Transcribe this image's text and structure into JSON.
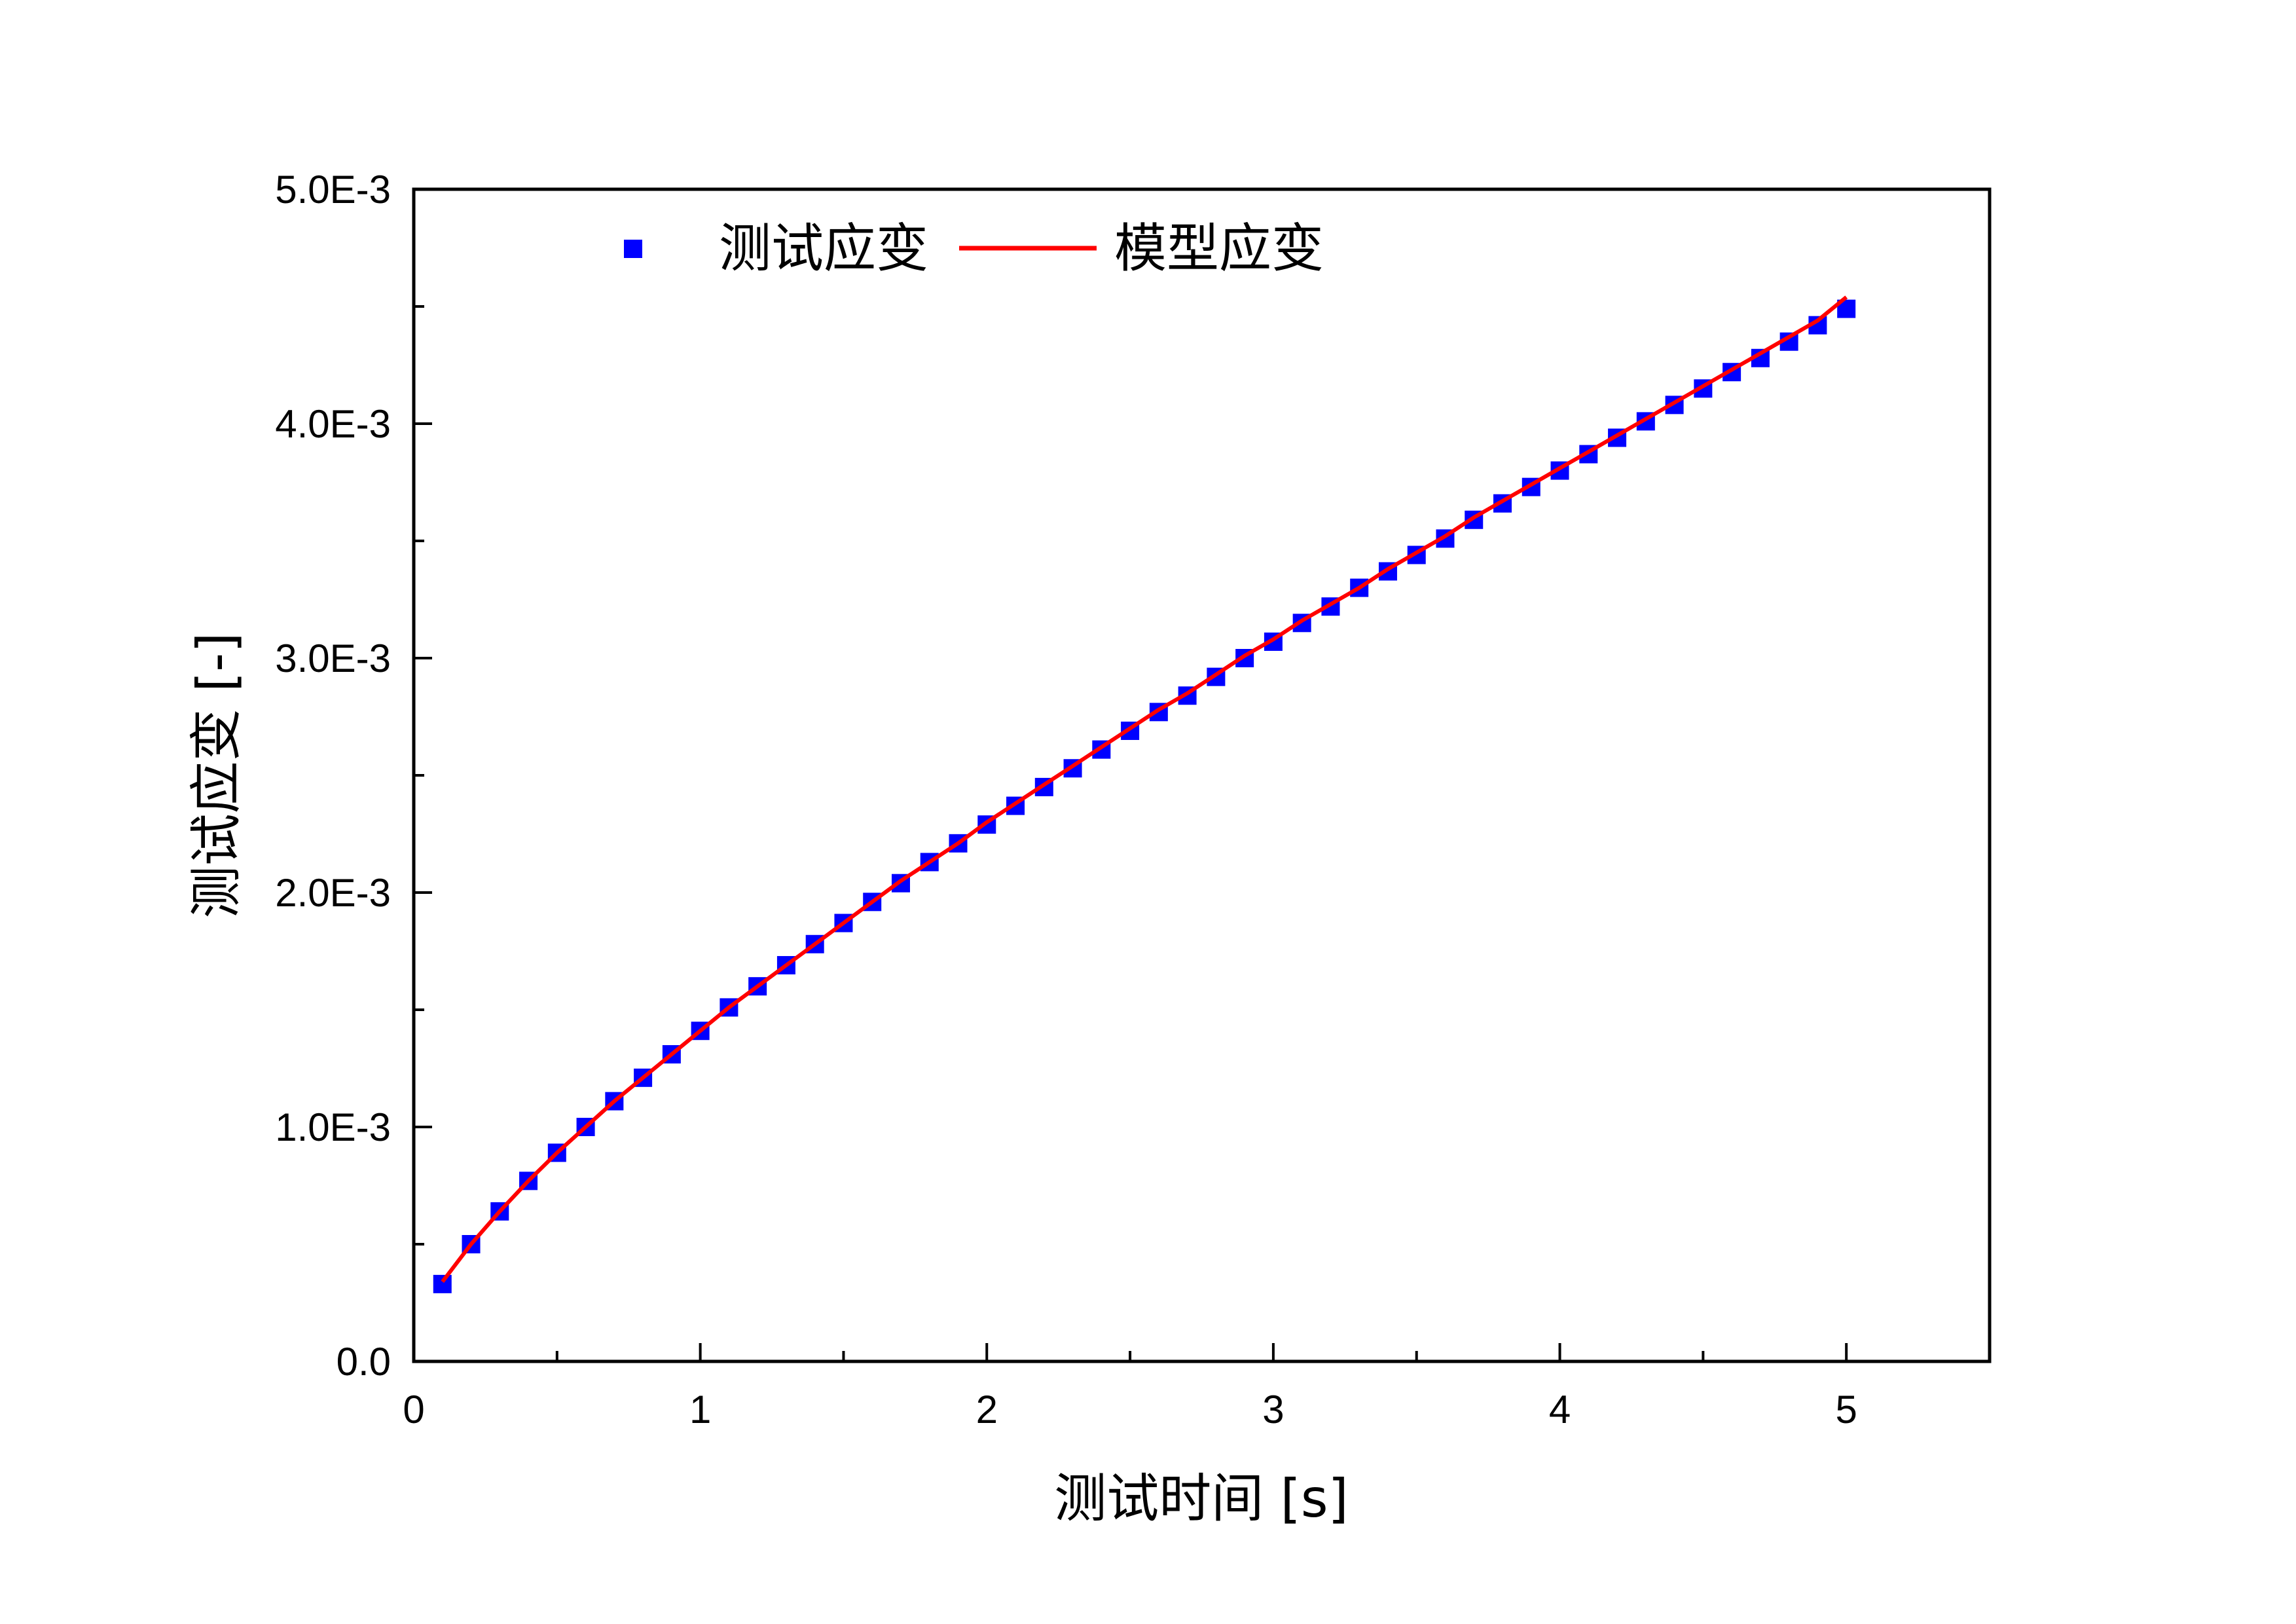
{
  "chart_data": {
    "type": "scatter",
    "xlabel": "测试时间 [s]",
    "ylabel": "测试应变 [-]",
    "xlim": [
      0,
      5.5
    ],
    "ylim": [
      0,
      0.005
    ],
    "grid": false,
    "legend_position": "top-left",
    "x_ticks": [
      {
        "value": 0,
        "label": "0"
      },
      {
        "value": 1,
        "label": "1"
      },
      {
        "value": 2,
        "label": "2"
      },
      {
        "value": 3,
        "label": "3"
      },
      {
        "value": 4,
        "label": "4"
      },
      {
        "value": 5,
        "label": "5"
      }
    ],
    "y_ticks": [
      {
        "value": 0,
        "label": "0.0"
      },
      {
        "value": 0.001,
        "label": "1.0E-3"
      },
      {
        "value": 0.002,
        "label": "2.0E-3"
      },
      {
        "value": 0.003,
        "label": "3.0E-3"
      },
      {
        "value": 0.004,
        "label": "4.0E-3"
      },
      {
        "value": 0.005,
        "label": "5.0E-3"
      }
    ],
    "series": [
      {
        "name": "测试应变",
        "kind": "scatter",
        "marker": "square",
        "color": "#0000ff",
        "x": [
          0.1,
          0.2,
          0.3,
          0.4,
          0.5,
          0.6,
          0.7,
          0.8,
          0.9,
          1.0,
          1.1,
          1.2,
          1.3,
          1.4,
          1.5,
          1.6,
          1.7,
          1.8,
          1.9,
          2.0,
          2.1,
          2.2,
          2.3,
          2.4,
          2.5,
          2.6,
          2.7,
          2.8,
          2.9,
          3.0,
          3.1,
          3.2,
          3.3,
          3.4,
          3.5,
          3.6,
          3.7,
          3.8,
          3.9,
          4.0,
          4.1,
          4.2,
          4.3,
          4.4,
          4.5,
          4.6,
          4.7,
          4.8,
          4.9,
          5.0
        ],
        "y": [
          0.00033,
          0.0005,
          0.00064,
          0.00077,
          0.00089,
          0.001,
          0.00111,
          0.00121,
          0.00131,
          0.00141,
          0.00151,
          0.0016,
          0.00169,
          0.00178,
          0.00187,
          0.00196,
          0.00204,
          0.00213,
          0.00221,
          0.00229,
          0.00237,
          0.00245,
          0.00253,
          0.00261,
          0.00269,
          0.00277,
          0.00284,
          0.00292,
          0.003,
          0.00307,
          0.00315,
          0.00322,
          0.0033,
          0.00337,
          0.00344,
          0.00351,
          0.00359,
          0.00366,
          0.00373,
          0.0038,
          0.00387,
          0.00394,
          0.00401,
          0.00408,
          0.00415,
          0.00422,
          0.00428,
          0.00435,
          0.00442,
          0.00449
        ]
      },
      {
        "name": "模型应变",
        "kind": "line",
        "color": "#ff0000",
        "x": [
          0.1,
          0.2,
          0.3,
          0.4,
          0.5,
          0.6,
          0.7,
          0.8,
          0.9,
          1.0,
          1.1,
          1.2,
          1.3,
          1.4,
          1.5,
          1.6,
          1.7,
          1.8,
          1.9,
          2.0,
          2.1,
          2.2,
          2.3,
          2.4,
          2.5,
          2.6,
          2.7,
          2.8,
          2.9,
          3.0,
          3.1,
          3.2,
          3.3,
          3.4,
          3.5,
          3.6,
          3.7,
          3.8,
          3.9,
          4.0,
          4.1,
          4.2,
          4.3,
          4.4,
          4.5,
          4.6,
          4.7,
          4.8,
          4.9,
          5.0
        ],
        "y": [
          0.00034,
          0.0005,
          0.00064,
          0.00077,
          0.00089,
          0.001,
          0.00111,
          0.00121,
          0.00131,
          0.00141,
          0.00151,
          0.0016,
          0.00169,
          0.00178,
          0.00187,
          0.00196,
          0.00205,
          0.00213,
          0.00221,
          0.0023,
          0.00238,
          0.00246,
          0.00254,
          0.00262,
          0.0027,
          0.00278,
          0.00285,
          0.00293,
          0.00301,
          0.00308,
          0.00316,
          0.00323,
          0.0033,
          0.00338,
          0.00345,
          0.00352,
          0.0036,
          0.00367,
          0.00374,
          0.00381,
          0.00388,
          0.00395,
          0.00402,
          0.00409,
          0.00416,
          0.00423,
          0.0043,
          0.00437,
          0.00444,
          0.00454
        ]
      }
    ]
  }
}
